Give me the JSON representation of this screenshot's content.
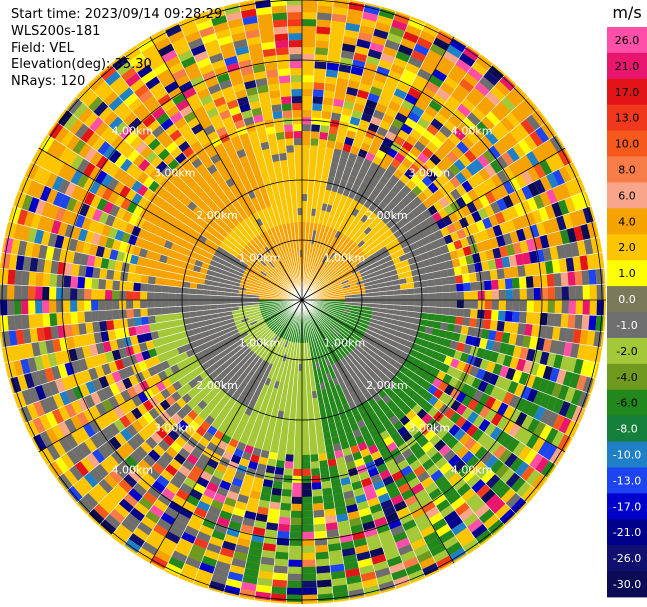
{
  "header": {
    "start_time": "Start time: 2023/09/14 09:28:29",
    "instrument": "WLS200s-181",
    "field": "Field: VEL",
    "elevation": "Elevation(deg): 35.30",
    "nrays": "NRays: 120"
  },
  "chart_data": {
    "type": "ppi-velocity",
    "field": "VEL",
    "units": "m/s",
    "nrays": 120,
    "elevation_deg": 35.3,
    "range_rings": [
      "1.00km",
      "2.00km",
      "3.00km",
      "4.00km"
    ],
    "colorbar": {
      "label": "m/s",
      "ticks": [
        "26.0",
        "21.0",
        "17.0",
        "13.0",
        "10.0",
        "8.0",
        "6.0",
        "4.0",
        "2.0",
        "1.0",
        "0.0",
        "-1.0",
        "-2.0",
        "-4.0",
        "-6.0",
        "-8.0",
        "-10.0",
        "-13.0",
        "-17.0",
        "-21.0",
        "-26.0",
        "-30.0"
      ],
      "colors": [
        "#ff4fa8",
        "#e8166e",
        "#e31418",
        "#f0381d",
        "#f55a1c",
        "#f67d48",
        "#f9a58a",
        "#f6a200",
        "#fcc500",
        "#ffff00",
        "#7a7a5a",
        "#6e6e6e",
        "#a3c93a",
        "#6f9a1f",
        "#22871d",
        "#14803a",
        "#1f7fc7",
        "#1c44f0",
        "#0000cd",
        "#00008b",
        "#101070",
        "#0b0b55"
      ]
    },
    "pattern": {
      "inner_receding": "orange/yellow south half",
      "inner_approaching": "green north half",
      "outer": "noise"
    }
  }
}
